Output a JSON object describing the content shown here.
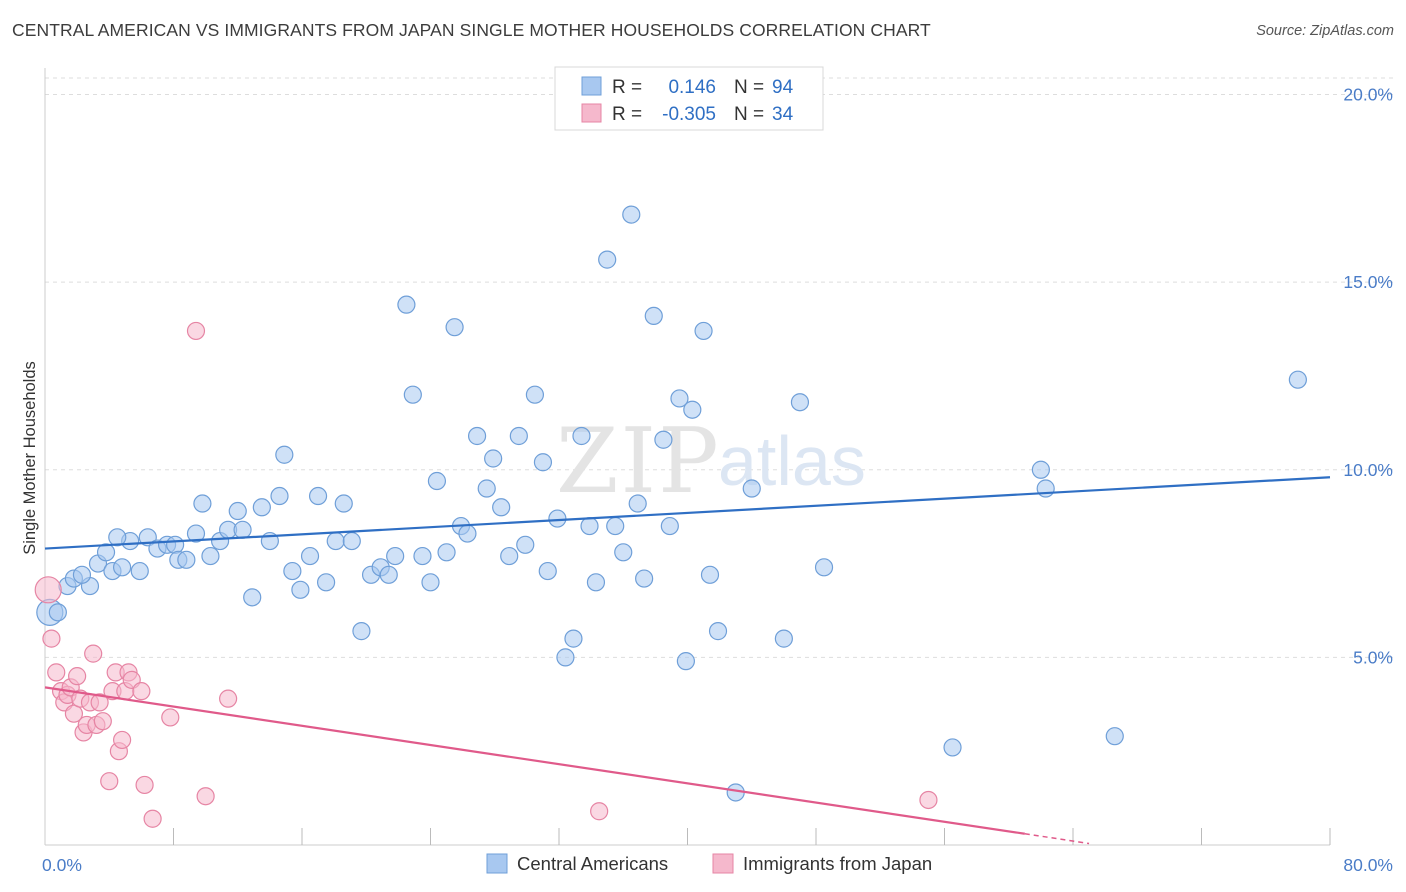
{
  "title": "CENTRAL AMERICAN VS IMMIGRANTS FROM JAPAN SINGLE MOTHER HOUSEHOLDS CORRELATION CHART",
  "source": "Source: ZipAtlas.com",
  "watermark": {
    "zip": "ZIP",
    "atlas": "atlas"
  },
  "chart_data": {
    "type": "scatter",
    "ylabel": "Single Mother Households",
    "xlim": [
      0,
      80
    ],
    "ylim": [
      0,
      20.6
    ],
    "x_tick_labels": [
      "0.0%",
      "80.0%"
    ],
    "y_ticks": [
      5,
      10,
      15,
      20
    ],
    "y_tick_labels": [
      "5.0%",
      "10.0%",
      "15.0%",
      "20.0%"
    ],
    "grid": "horizontal dashed",
    "legend_position": "top-center",
    "stats": [
      {
        "r_label": "R =",
        "r": "0.146",
        "n_label": "N =",
        "n": "94"
      },
      {
        "r_label": "R =",
        "r": "-0.305",
        "n_label": "N =",
        "n": "34"
      }
    ],
    "series": [
      {
        "name": "Central Americans",
        "color": "#a8c8f0",
        "stroke": "#6f9fd8",
        "trend_color": "#2f6fc4",
        "trend": {
          "x0": 0,
          "y0": 7.9,
          "x1": 80,
          "y1": 9.8
        },
        "points": [
          [
            0.3,
            6.2
          ],
          [
            1.4,
            6.9
          ],
          [
            1.8,
            7.1
          ],
          [
            2.8,
            6.9
          ],
          [
            3.3,
            7.5
          ],
          [
            3.8,
            7.8
          ],
          [
            4.2,
            7.3
          ],
          [
            4.8,
            7.4
          ],
          [
            5.3,
            8.1
          ],
          [
            5.9,
            7.3
          ],
          [
            6.4,
            8.2
          ],
          [
            7.0,
            7.9
          ],
          [
            7.6,
            8.0
          ],
          [
            8.1,
            8.0
          ],
          [
            8.3,
            7.6
          ],
          [
            8.8,
            7.6
          ],
          [
            9.4,
            8.3
          ],
          [
            9.8,
            9.1
          ],
          [
            10.3,
            7.7
          ],
          [
            10.9,
            8.1
          ],
          [
            11.4,
            8.4
          ],
          [
            12.0,
            8.9
          ],
          [
            12.3,
            8.4
          ],
          [
            12.9,
            6.6
          ],
          [
            13.5,
            9.0
          ],
          [
            14.0,
            8.1
          ],
          [
            14.6,
            9.3
          ],
          [
            14.9,
            10.4
          ],
          [
            15.4,
            7.3
          ],
          [
            15.9,
            6.8
          ],
          [
            16.5,
            7.7
          ],
          [
            17.0,
            9.3
          ],
          [
            17.5,
            7.0
          ],
          [
            18.1,
            8.1
          ],
          [
            18.6,
            9.1
          ],
          [
            19.1,
            8.1
          ],
          [
            19.7,
            5.7
          ],
          [
            20.3,
            7.2
          ],
          [
            20.9,
            7.4
          ],
          [
            21.4,
            7.2
          ],
          [
            21.8,
            7.7
          ],
          [
            22.5,
            14.4
          ],
          [
            22.9,
            12.0
          ],
          [
            23.5,
            7.7
          ],
          [
            24.0,
            7.0
          ],
          [
            24.4,
            9.7
          ],
          [
            25.0,
            7.8
          ],
          [
            25.5,
            13.8
          ],
          [
            25.9,
            8.5
          ],
          [
            26.3,
            8.3
          ],
          [
            26.9,
            10.9
          ],
          [
            27.5,
            9.5
          ],
          [
            27.9,
            10.3
          ],
          [
            28.4,
            9.0
          ],
          [
            28.9,
            7.7
          ],
          [
            29.5,
            10.9
          ],
          [
            29.9,
            8.0
          ],
          [
            30.5,
            12.0
          ],
          [
            31.0,
            10.2
          ],
          [
            31.3,
            7.3
          ],
          [
            31.9,
            8.7
          ],
          [
            32.4,
            5.0
          ],
          [
            32.9,
            5.5
          ],
          [
            33.4,
            10.9
          ],
          [
            33.9,
            8.5
          ],
          [
            34.3,
            7.0
          ],
          [
            35.0,
            15.6
          ],
          [
            35.5,
            8.5
          ],
          [
            36.0,
            7.8
          ],
          [
            36.5,
            16.8
          ],
          [
            36.9,
            9.1
          ],
          [
            37.3,
            7.1
          ],
          [
            37.9,
            14.1
          ],
          [
            38.5,
            10.8
          ],
          [
            38.9,
            8.5
          ],
          [
            39.5,
            11.9
          ],
          [
            39.9,
            4.9
          ],
          [
            40.3,
            11.6
          ],
          [
            41.0,
            13.7
          ],
          [
            41.4,
            7.2
          ],
          [
            41.9,
            5.7
          ],
          [
            43.0,
            1.4
          ],
          [
            44.0,
            9.5
          ],
          [
            46.0,
            5.5
          ],
          [
            47.0,
            11.8
          ],
          [
            48.5,
            7.4
          ],
          [
            56.5,
            2.6
          ],
          [
            62.0,
            10.0
          ],
          [
            62.3,
            9.5
          ],
          [
            66.6,
            2.9
          ],
          [
            78.0,
            12.4
          ],
          [
            0.8,
            6.2
          ],
          [
            2.3,
            7.2
          ],
          [
            4.5,
            8.2
          ]
        ]
      },
      {
        "name": "Immigrants from Japan",
        "color": "#f5b8cc",
        "stroke": "#e685a4",
        "trend_color": "#e05a8a",
        "trend": {
          "x0": 0,
          "y0": 4.2,
          "x1": 61,
          "y1": 0.3
        },
        "points": [
          [
            0.2,
            6.8
          ],
          [
            0.4,
            5.5
          ],
          [
            0.7,
            4.6
          ],
          [
            1.0,
            4.1
          ],
          [
            1.2,
            3.8
          ],
          [
            1.4,
            4.0
          ],
          [
            1.6,
            4.2
          ],
          [
            1.8,
            3.5
          ],
          [
            2.0,
            4.5
          ],
          [
            2.2,
            3.9
          ],
          [
            2.4,
            3.0
          ],
          [
            2.6,
            3.2
          ],
          [
            2.8,
            3.8
          ],
          [
            3.0,
            5.1
          ],
          [
            3.2,
            3.2
          ],
          [
            3.4,
            3.8
          ],
          [
            3.6,
            3.3
          ],
          [
            4.0,
            1.7
          ],
          [
            4.2,
            4.1
          ],
          [
            4.4,
            4.6
          ],
          [
            4.6,
            2.5
          ],
          [
            4.8,
            2.8
          ],
          [
            5.0,
            4.1
          ],
          [
            5.2,
            4.6
          ],
          [
            5.4,
            4.4
          ],
          [
            6.0,
            4.1
          ],
          [
            6.2,
            1.6
          ],
          [
            6.7,
            0.7
          ],
          [
            7.8,
            3.4
          ],
          [
            9.4,
            13.7
          ],
          [
            10.0,
            1.3
          ],
          [
            11.4,
            3.9
          ],
          [
            34.5,
            0.9
          ],
          [
            55.0,
            1.2
          ]
        ]
      }
    ]
  }
}
